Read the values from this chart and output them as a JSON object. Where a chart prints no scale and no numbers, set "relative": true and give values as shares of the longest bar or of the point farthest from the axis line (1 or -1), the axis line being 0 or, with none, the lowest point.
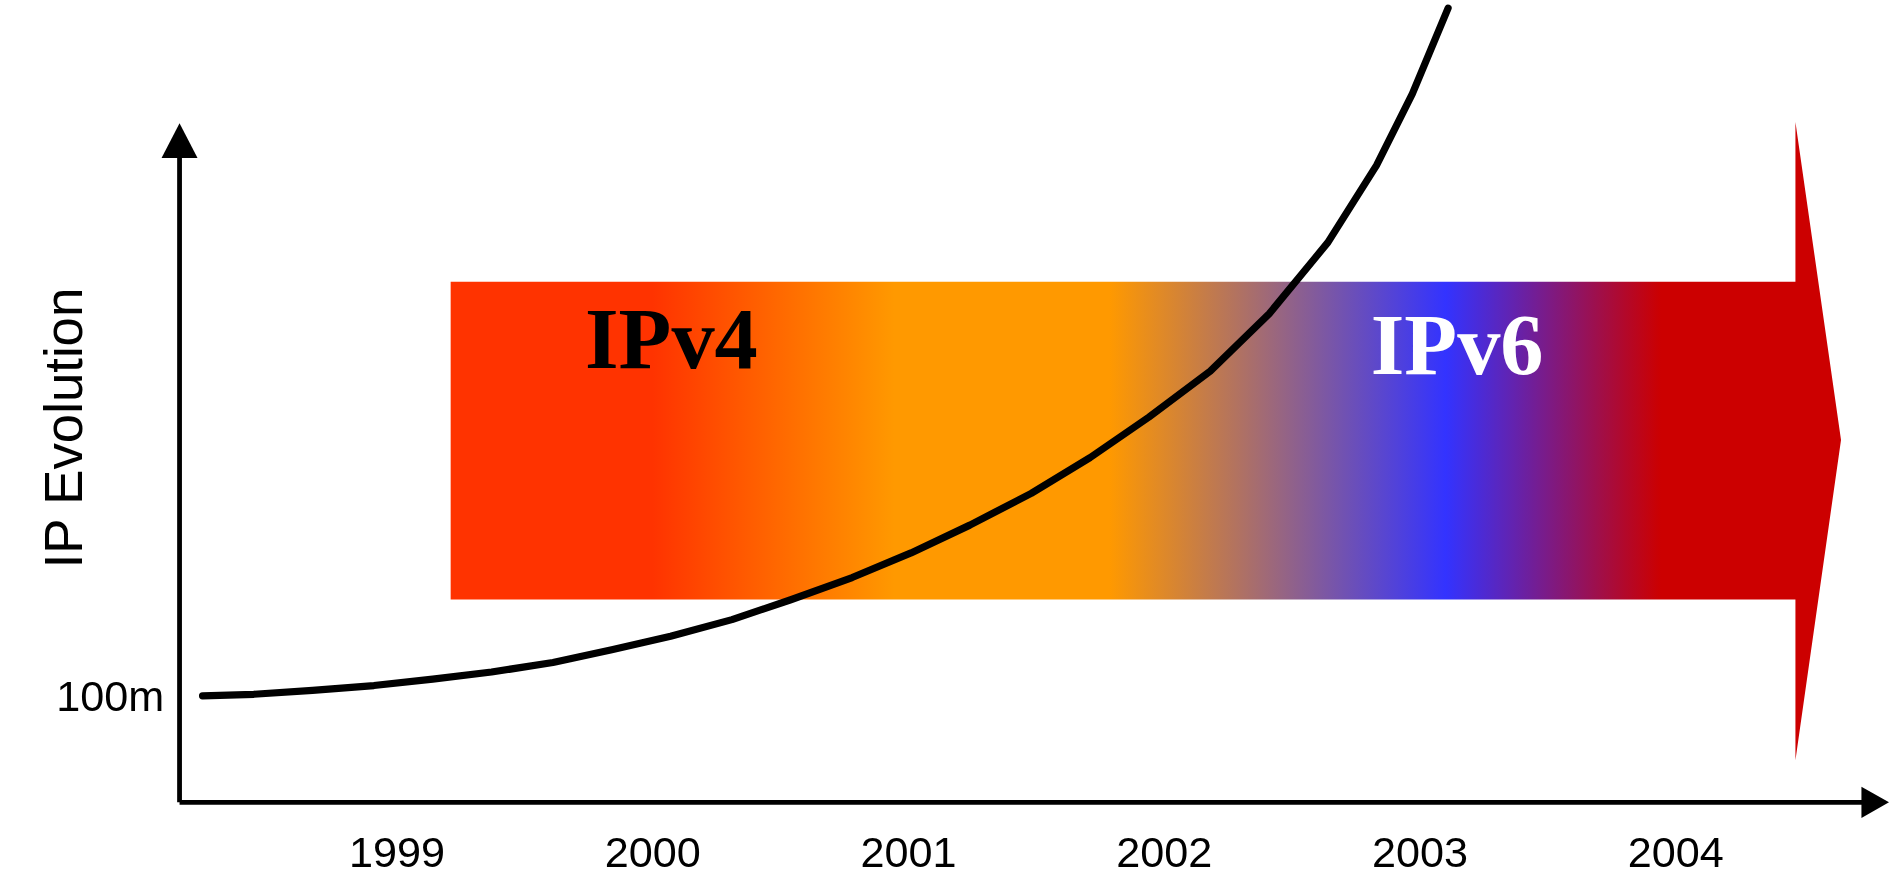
{
  "chart_data": {
    "type": "line",
    "ylabel": "IP Evolution",
    "relative": true,
    "xlim": [
      1998.15,
      2004.74
    ],
    "xticks": [
      1999,
      2000,
      2001,
      2002,
      2003,
      2004
    ],
    "series": [
      {
        "color": "#000000",
        "line_style": "solid",
        "x": [
          1998.24,
          1998.44,
          1998.67,
          1998.91,
          1999.14,
          1999.37,
          1999.61,
          1999.84,
          2000.07,
          2000.31,
          2000.54,
          2000.78,
          2001.01,
          2001.24,
          2001.48,
          2001.71,
          2001.94,
          2002.18,
          2002.41,
          2002.64,
          2002.83,
          2002.97,
          2003.11
        ],
        "values": [
          0.134,
          0.136,
          0.141,
          0.147,
          0.155,
          0.164,
          0.176,
          0.192,
          0.209,
          0.23,
          0.255,
          0.283,
          0.314,
          0.349,
          0.389,
          0.434,
          0.485,
          0.543,
          0.615,
          0.705,
          0.802,
          0.892,
          1.0
        ]
      }
    ],
    "annotations": [
      {
        "text": "100m",
        "x": 1998.24,
        "y": 0.134
      },
      "IPv4",
      "IPv6"
    ]
  }
}
